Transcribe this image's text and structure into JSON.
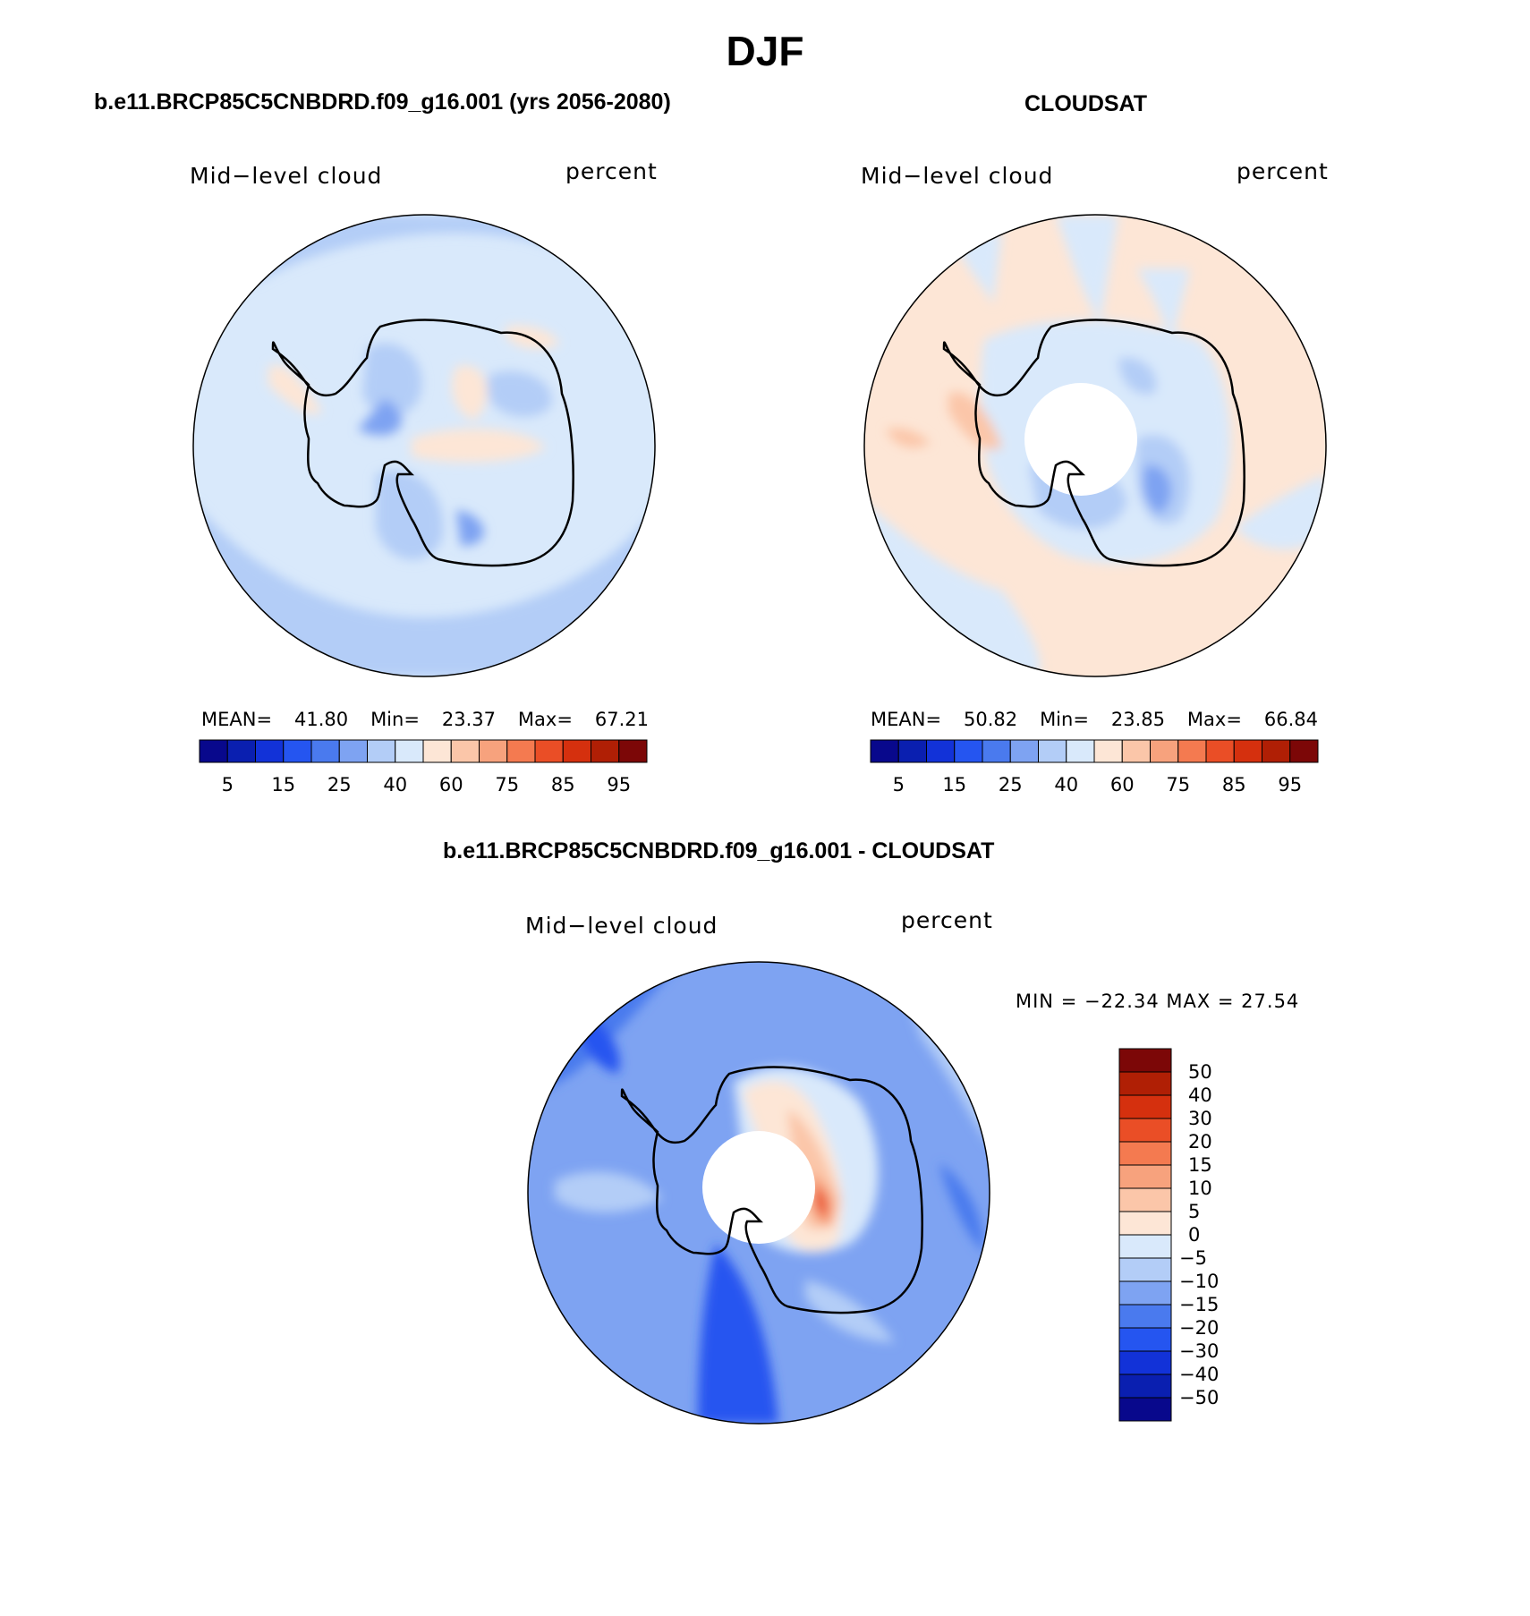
{
  "title": "DJF",
  "panels": {
    "left": {
      "subtitle": "b.e11.BRCP85C5CNBDRD.f09_g16.001 (yrs 2056-2080)",
      "variable": "Mid−level cloud",
      "units": "percent",
      "mean_label": "MEAN=",
      "mean": "41.80",
      "min_label": "Min=",
      "min": "23.37",
      "max_label": "Max=",
      "max": "67.21",
      "colorbar_ticks": [
        "5",
        "15",
        "25",
        "40",
        "60",
        "75",
        "85",
        "95"
      ]
    },
    "right": {
      "subtitle": "CLOUDSAT",
      "variable": "Mid−level cloud",
      "units": "percent",
      "mean_label": "MEAN=",
      "mean": "50.82",
      "min_label": "Min=",
      "min": "23.85",
      "max_label": "Max=",
      "max": "66.84",
      "colorbar_ticks": [
        "5",
        "15",
        "25",
        "40",
        "60",
        "75",
        "85",
        "95"
      ]
    },
    "diff": {
      "subtitle": "b.e11.BRCP85C5CNBDRD.f09_g16.001 - CLOUDSAT",
      "variable": "Mid−level cloud",
      "units": "percent",
      "minmax": "MIN = −22.34 MAX =  27.54",
      "colorbar_ticks": [
        "50",
        "40",
        "30",
        "20",
        "15",
        "10",
        "5",
        "0",
        "−5",
        "−10",
        "−15",
        "−20",
        "−30",
        "−40",
        "−50"
      ]
    }
  },
  "palettes": {
    "field": [
      "#08088c",
      "#0a1fb0",
      "#1232d8",
      "#2555f0",
      "#4a7aee",
      "#7ea3f2",
      "#b3cdf7",
      "#d9e9fb",
      "#fde6d6",
      "#fbc6a9",
      "#f7a27d",
      "#f47a50",
      "#ea4e26",
      "#d5300e",
      "#b01f05",
      "#7c0707"
    ],
    "diff": [
      "#7c0707",
      "#b01f05",
      "#d5300e",
      "#ea4e26",
      "#f47a50",
      "#f7a27d",
      "#fbc6a9",
      "#fde6d6",
      "#d9e9fb",
      "#b3cdf7",
      "#7ea3f2",
      "#4a7aee",
      "#2555f0",
      "#1232d8",
      "#0a1fb0",
      "#08088c"
    ]
  }
}
